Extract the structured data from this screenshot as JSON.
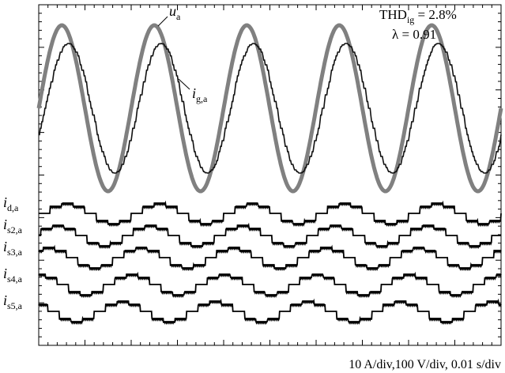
{
  "chart_data": {
    "type": "line",
    "title": "",
    "xlabel": "",
    "ylabel": "",
    "grid": false,
    "scale_note": "10 A/div,100 V/div, 0.01 s/div",
    "x_divisions": 10,
    "y_divisions": 8,
    "xlim_s": [
      0,
      0.1
    ],
    "annotations": {
      "thd_prefix": "THD",
      "thd_sub": "ig",
      "thd_value": " = 2.8%",
      "lambda": "λ = 0.91"
    },
    "series": [
      {
        "name": "u",
        "sub": "a",
        "color": "#808080",
        "kind": "sine",
        "amplitude_V": 290,
        "frequency_Hz": 50,
        "phase_deg": 0
      },
      {
        "name": "i",
        "sub": "g,a",
        "color": "#111111",
        "kind": "sine_stepped",
        "amplitude_A": 20,
        "frequency_Hz": 50,
        "lag_deg": 24,
        "samples": 120
      }
    ],
    "modules": [
      {
        "name": "i",
        "sub": "d,a",
        "amplitude_A": 5,
        "phase_deg": 0
      },
      {
        "name": "i",
        "sub": "s2,a",
        "amplitude_A": 5,
        "phase_deg": 36
      },
      {
        "name": "i",
        "sub": "s3,a",
        "amplitude_A": 5,
        "phase_deg": 72
      },
      {
        "name": "i",
        "sub": "s4,a",
        "amplitude_A": 5,
        "phase_deg": 108
      },
      {
        "name": "i",
        "sub": "s5,a",
        "amplitude_A": 5,
        "phase_deg": 144
      }
    ]
  }
}
